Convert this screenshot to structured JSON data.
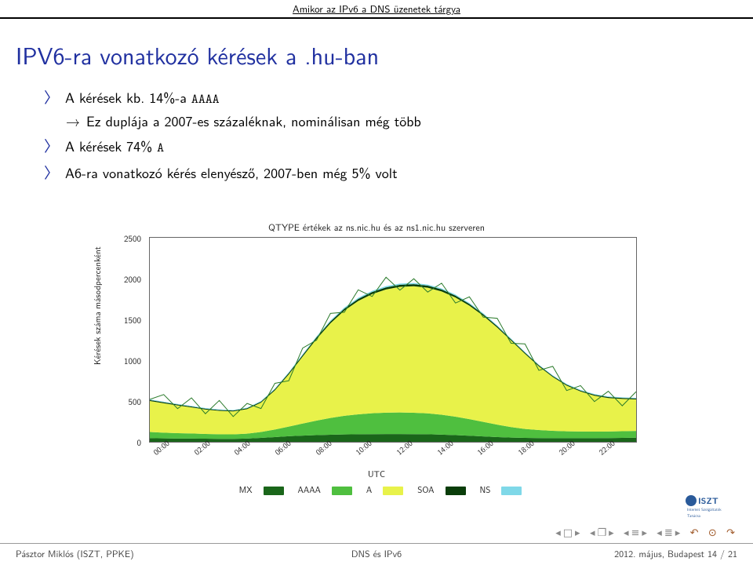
{
  "header": {
    "section_title": "Amikor az IPv6 a DNS üzenetek tárgya"
  },
  "title": "IPV6-ra vonatkozó kérések a .hu-ban",
  "bullets": {
    "b1": "A kérések kb. 14%-a ",
    "b1_code": "AAAA",
    "b1_sub": "Ez duplája a 2007-es százaléknak, nominálisan még több",
    "b2_a": "A kérések 74% ",
    "b2_code": "A",
    "b3": "A6-ra vonatkozó kérés elenyésző, 2007-ben még 5% volt"
  },
  "chart": {
    "type": "stacked-area",
    "title": "QTYPE értékek az ns.nic.hu és az ns1.nic.hu szerveren",
    "ylabel": "Kérések száma másodpercenként",
    "xlabel": "UTC",
    "ylim": [
      0,
      2500
    ],
    "ytick_step": 500,
    "yticks": [
      0,
      500,
      1000,
      1500,
      2000,
      2500
    ],
    "xticks": [
      "00:00",
      "02:00",
      "04:00",
      "06:00",
      "08:00",
      "10:00",
      "12:00",
      "14:00",
      "16:00",
      "18:00",
      "20:00",
      "22:00"
    ],
    "background_color": "#ffffff",
    "border_color": "#666666",
    "series": [
      {
        "name": "MX",
        "color": "#1a661a",
        "values": [
          45,
          42,
          40,
          40,
          38,
          36,
          36,
          40,
          48,
          58,
          68,
          76,
          82,
          86,
          90,
          92,
          94,
          95,
          95,
          94,
          92,
          88,
          82,
          74,
          66,
          58,
          52,
          48,
          46,
          45,
          44,
          44,
          45,
          46,
          48,
          50
        ]
      },
      {
        "name": "AAAA",
        "color": "#4fbf3f",
        "values": [
          75,
          70,
          66,
          62,
          58,
          56,
          55,
          60,
          72,
          92,
          118,
          148,
          178,
          206,
          228,
          244,
          256,
          262,
          264,
          262,
          256,
          244,
          226,
          204,
          178,
          152,
          128,
          110,
          98,
          90,
          85,
          82,
          80,
          80,
          82,
          84
        ]
      },
      {
        "name": "A",
        "color": "#e8f24a",
        "values": [
          380,
          360,
          340,
          320,
          300,
          288,
          282,
          300,
          360,
          480,
          640,
          820,
          1000,
          1160,
          1290,
          1390,
          1460,
          1510,
          1540,
          1550,
          1540,
          1510,
          1460,
          1390,
          1300,
          1190,
          1060,
          920,
          780,
          660,
          560,
          490,
          440,
          410,
          395,
          385
        ]
      },
      {
        "name": "SOA",
        "color": "#0a3d0a",
        "values": [
          12,
          12,
          11,
          11,
          10,
          10,
          10,
          11,
          12,
          14,
          16,
          18,
          20,
          22,
          23,
          24,
          25,
          25,
          25,
          25,
          25,
          24,
          23,
          21,
          19,
          17,
          15,
          14,
          13,
          12,
          12,
          12,
          12,
          12,
          12,
          12
        ]
      },
      {
        "name": "NS",
        "color": "#7fd8e8",
        "values": [
          8,
          8,
          7,
          7,
          7,
          7,
          7,
          7,
          8,
          9,
          10,
          11,
          12,
          13,
          14,
          14,
          15,
          15,
          15,
          15,
          14,
          14,
          13,
          12,
          11,
          10,
          9,
          9,
          8,
          8,
          8,
          8,
          8,
          8,
          8,
          8
        ]
      }
    ],
    "legend_order": [
      "MX",
      "AAAA",
      "A",
      "SOA",
      "NS"
    ],
    "legend_colors": {
      "MX": "#1a661a",
      "AAAA": "#4fbf3f",
      "A": "#e8f24a",
      "SOA": "#0a3d0a",
      "NS": "#7fd8e8"
    },
    "noise_stroke_color": "#2a7a2a"
  },
  "footer": {
    "left": "Pásztor Miklós (ISZT, PPKE)",
    "center": "DNS és IPv6",
    "right": "2012. május, Budapest     14 / 21"
  },
  "logo": {
    "text": "ISZT"
  }
}
